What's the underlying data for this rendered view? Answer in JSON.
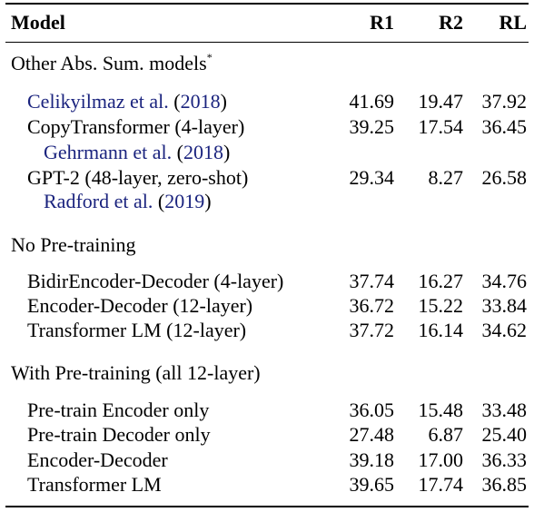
{
  "header": {
    "model": "Model",
    "r1": "R1",
    "r2": "R2",
    "rl": "RL"
  },
  "sections": [
    {
      "title": "Other Abs. Sum. models",
      "title_mark": "*"
    },
    {
      "title": "No Pre-training"
    },
    {
      "title": "With Pre-training (all 12-layer)"
    }
  ],
  "rows": {
    "celikyilmaz": {
      "cite_name": "Celikyilmaz et al.",
      "open": "(",
      "year": "2018",
      "close": ")",
      "r1": "41.69",
      "r2": "19.47",
      "rl": "37.92"
    },
    "copytransformer": {
      "label": "CopyTransformer (4-layer)",
      "r1": "39.25",
      "r2": "17.54",
      "rl": "36.45",
      "cite_name": "Gehrmann et al.",
      "open": "(",
      "year": "2018",
      "close": ")"
    },
    "gpt2": {
      "label": "GPT-2 (48-layer, zero-shot)",
      "r1": "29.34",
      "r2": "8.27",
      "rl": "26.58",
      "cite_name": "Radford et al.",
      "open": "(",
      "year": "2019",
      "close": ")"
    },
    "bidir": {
      "label": "BidirEncoder-Decoder (4-layer)",
      "r1": "37.74",
      "r2": "16.27",
      "rl": "34.76"
    },
    "encdec12": {
      "label": "Encoder-Decoder (12-layer)",
      "r1": "36.72",
      "r2": "15.22",
      "rl": "33.84"
    },
    "tlm12": {
      "label": "Transformer LM (12-layer)",
      "r1": "37.72",
      "r2": "16.14",
      "rl": "34.62"
    },
    "ptenc": {
      "label": "Pre-train Encoder only",
      "r1": "36.05",
      "r2": "15.48",
      "rl": "33.48"
    },
    "ptdec": {
      "label": "Pre-train Decoder only",
      "r1": "27.48",
      "r2": "6.87",
      "rl": "25.40"
    },
    "encdec": {
      "label": "Encoder-Decoder",
      "r1": "39.18",
      "r2": "17.00",
      "rl": "36.33"
    },
    "tlm": {
      "label": "Transformer LM",
      "r1": "39.65",
      "r2": "17.74",
      "rl": "36.85"
    }
  }
}
